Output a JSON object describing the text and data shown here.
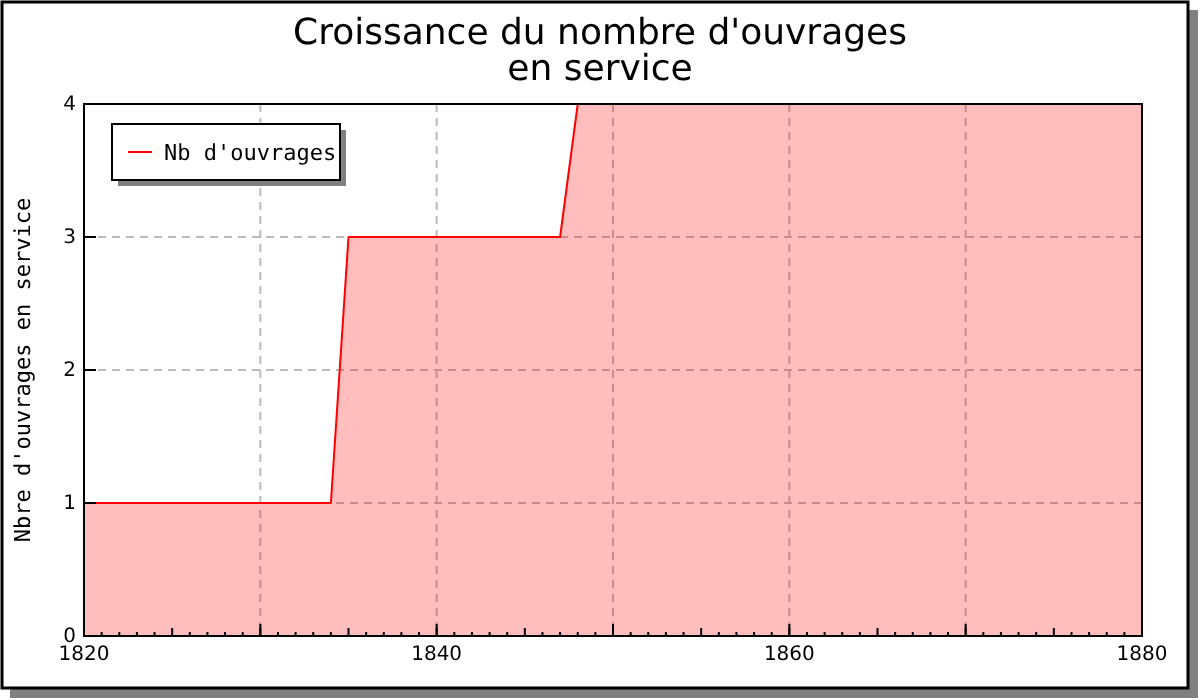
{
  "chart_data": {
    "type": "area",
    "title": "Croissance du nombre d'ouvrages\nen service",
    "ylabel": "Nbre d'ouvrages en service",
    "x": [
      1820,
      1834,
      1835,
      1847,
      1848,
      1880
    ],
    "series": [
      {
        "name": "Nb d'ouvrages",
        "color": "#ff0000",
        "values": [
          1,
          1,
          3,
          3,
          4,
          4
        ]
      }
    ],
    "xlim": [
      1820,
      1880
    ],
    "xticks": [
      1820,
      {
        "value": 1830,
        "label": null
      },
      1840,
      {
        "value": 1850,
        "label": null
      },
      1860,
      {
        "value": 1870,
        "label": null
      },
      1880
    ],
    "ylim": [
      0,
      4
    ],
    "yticks": [
      0,
      1,
      2,
      3,
      4
    ],
    "grid": true,
    "legend": "top left",
    "marker": "none",
    "line_style": "solid"
  }
}
